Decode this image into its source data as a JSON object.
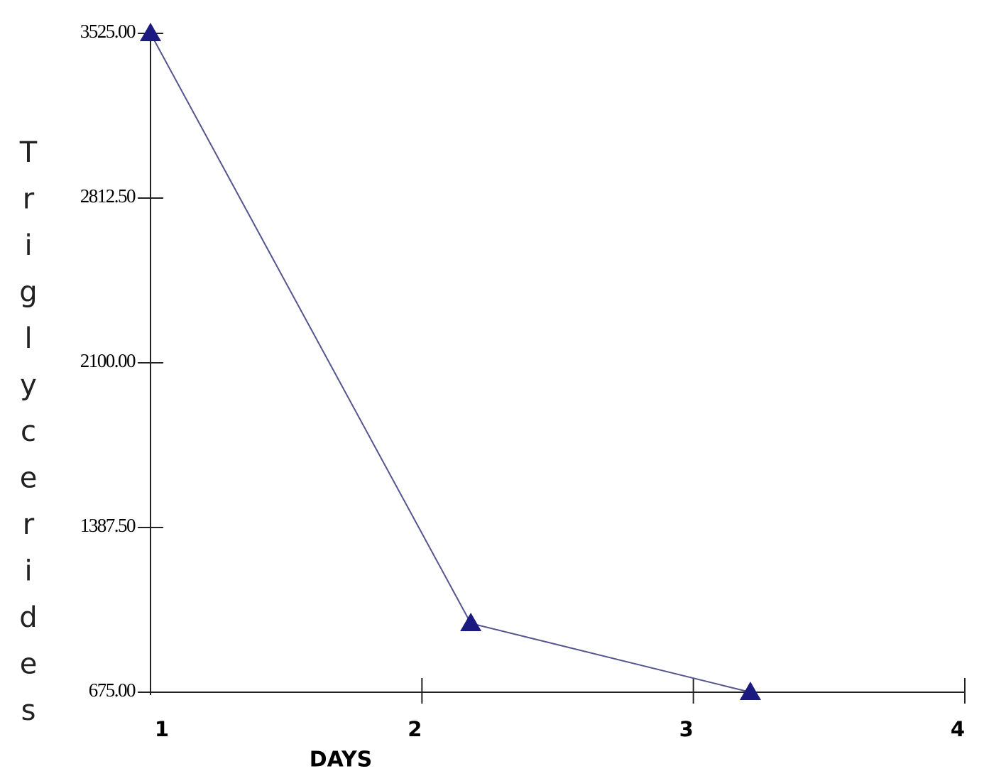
{
  "chart_data": {
    "type": "line",
    "x_label": "DAYS",
    "y_label": "Triglycerides",
    "x": [
      1,
      2.18,
      3.21
    ],
    "series": [
      {
        "name": "Triglycerides",
        "color": "#1a1a80",
        "values": [
          3525,
          973,
          675
        ]
      }
    ],
    "xlim": [
      1,
      4
    ],
    "xticks": [
      1,
      2,
      3,
      4
    ],
    "ylim": [
      675,
      3525
    ],
    "yticks": [
      {
        "value": 675,
        "label": "675.00"
      },
      {
        "value": 1387.5,
        "label": "1387.50"
      },
      {
        "value": 2100,
        "label": "2100.00"
      },
      {
        "value": 2812.5,
        "label": "2812.50"
      },
      {
        "value": 3525,
        "label": "3525.00"
      }
    ],
    "marker": "triangle",
    "grid": false
  }
}
